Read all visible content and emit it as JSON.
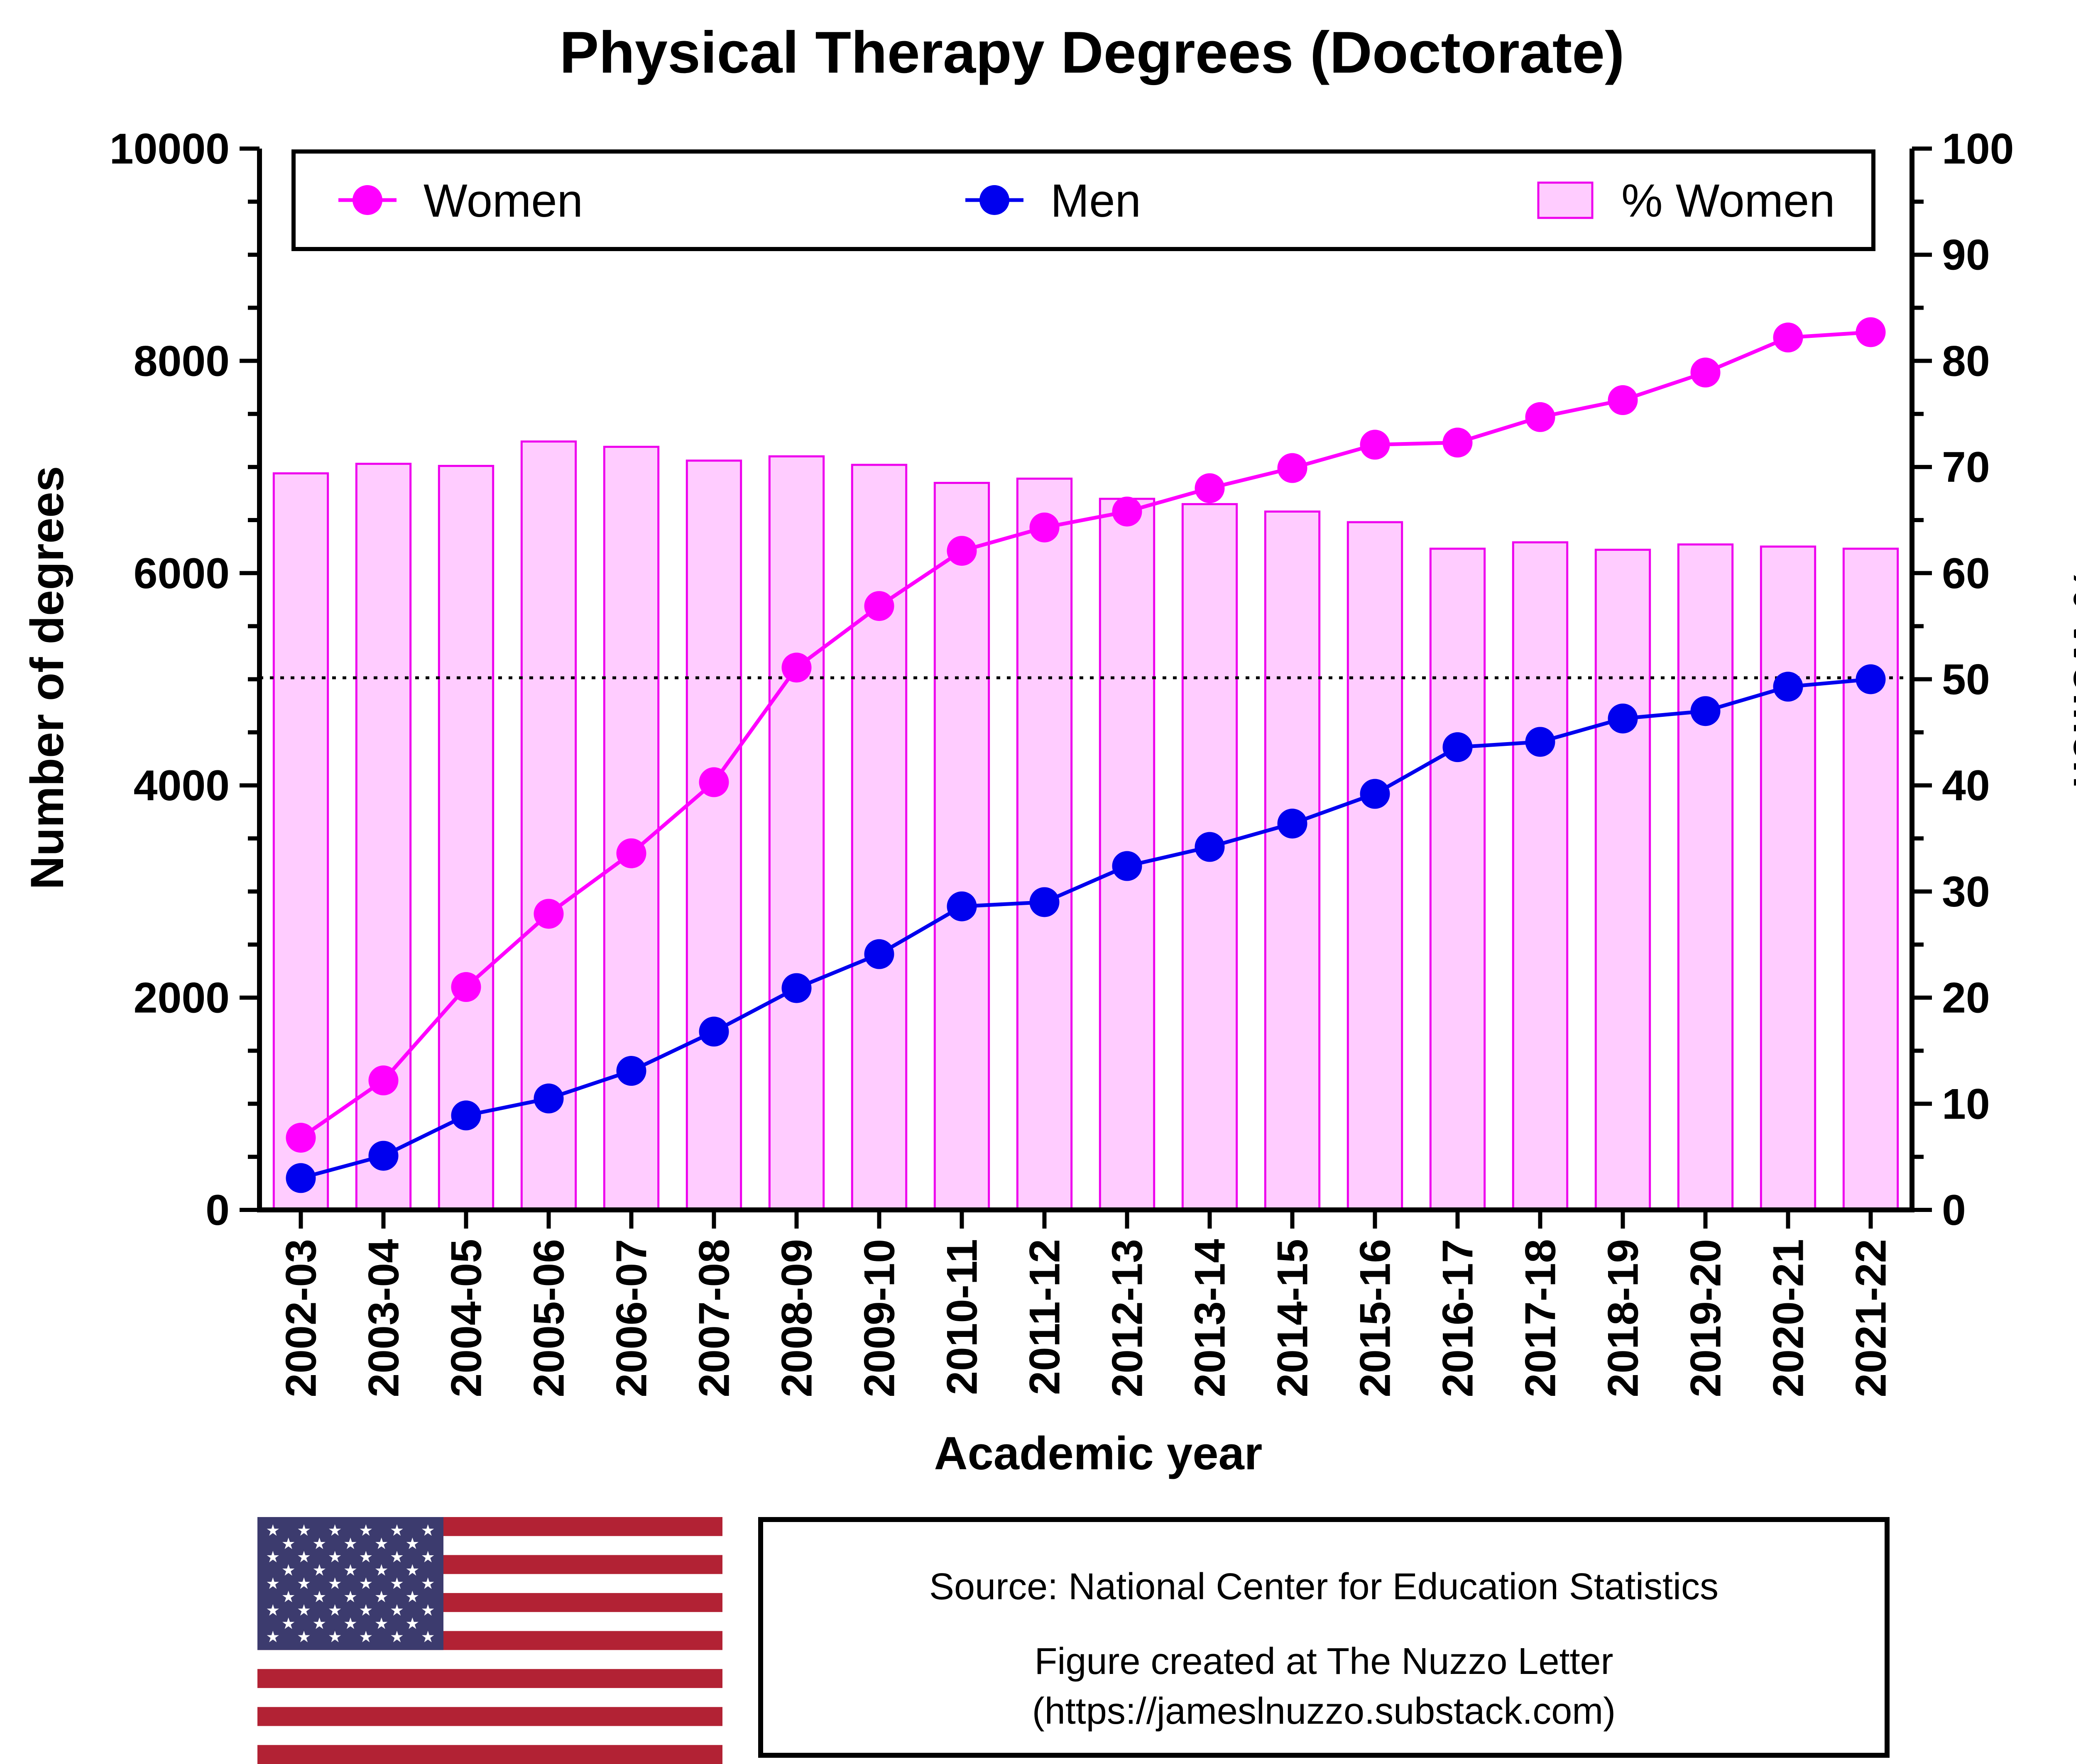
{
  "chart_data": {
    "type": "bar",
    "title": "Physical Therapy Degrees (Doctorate)",
    "xlabel": "Academic year",
    "ylabel": "Number of degrees",
    "y2label": "% Women",
    "ylim": [
      0,
      10000
    ],
    "y2lim": [
      0,
      100
    ],
    "yticks": [
      "0",
      "2000",
      "4000",
      "6000",
      "8000",
      "10000"
    ],
    "y2ticks": [
      "0",
      "10",
      "20",
      "30",
      "40",
      "50",
      "60",
      "70",
      "80",
      "90",
      "100"
    ],
    "reference_line_y2": 50,
    "legend_position": "top",
    "categories": [
      "2002-03",
      "2003-04",
      "2004-05",
      "2005-06",
      "2006-07",
      "2007-08",
      "2008-09",
      "2009-10",
      "2010-11",
      "2011-12",
      "2012-13",
      "2013-14",
      "2014-15",
      "2015-16",
      "2016-17",
      "2017-18",
      "2018-19",
      "2019-20",
      "2020-21",
      "2021-22"
    ],
    "series": [
      {
        "name": "Women",
        "type": "line",
        "axis": "left",
        "color": "#ff00ff",
        "values": [
          680,
          1220,
          2100,
          2790,
          3360,
          4030,
          5110,
          5690,
          6210,
          6430,
          6580,
          6800,
          6990,
          7210,
          7230,
          7470,
          7630,
          7890,
          8220,
          8270
        ]
      },
      {
        "name": "Men",
        "type": "line",
        "axis": "left",
        "color": "#0000ee",
        "values": [
          300,
          510,
          890,
          1050,
          1310,
          1680,
          2090,
          2410,
          2860,
          2900,
          3240,
          3420,
          3640,
          3920,
          4360,
          4410,
          4630,
          4700,
          4930,
          5000
        ]
      },
      {
        "name": "% Women",
        "type": "bar",
        "axis": "right",
        "color": "#ffccff",
        "stroke": "#ee00ee",
        "values": [
          69.4,
          70.3,
          70.1,
          72.4,
          71.9,
          70.6,
          71.0,
          70.2,
          68.5,
          68.9,
          67.0,
          66.5,
          65.8,
          64.8,
          62.3,
          62.9,
          62.2,
          62.7,
          62.5,
          62.3
        ]
      }
    ]
  },
  "source": {
    "line1": "Source: National Center for Education Statistics",
    "line2": "Figure created at The Nuzzo Letter",
    "line3": "(https://jameslnuzzo.substack.com)"
  },
  "flag": {
    "icon": "us-flag-icon",
    "colors": {
      "red": "#b22234",
      "white": "#ffffff",
      "blue": "#3c3b6e"
    }
  }
}
